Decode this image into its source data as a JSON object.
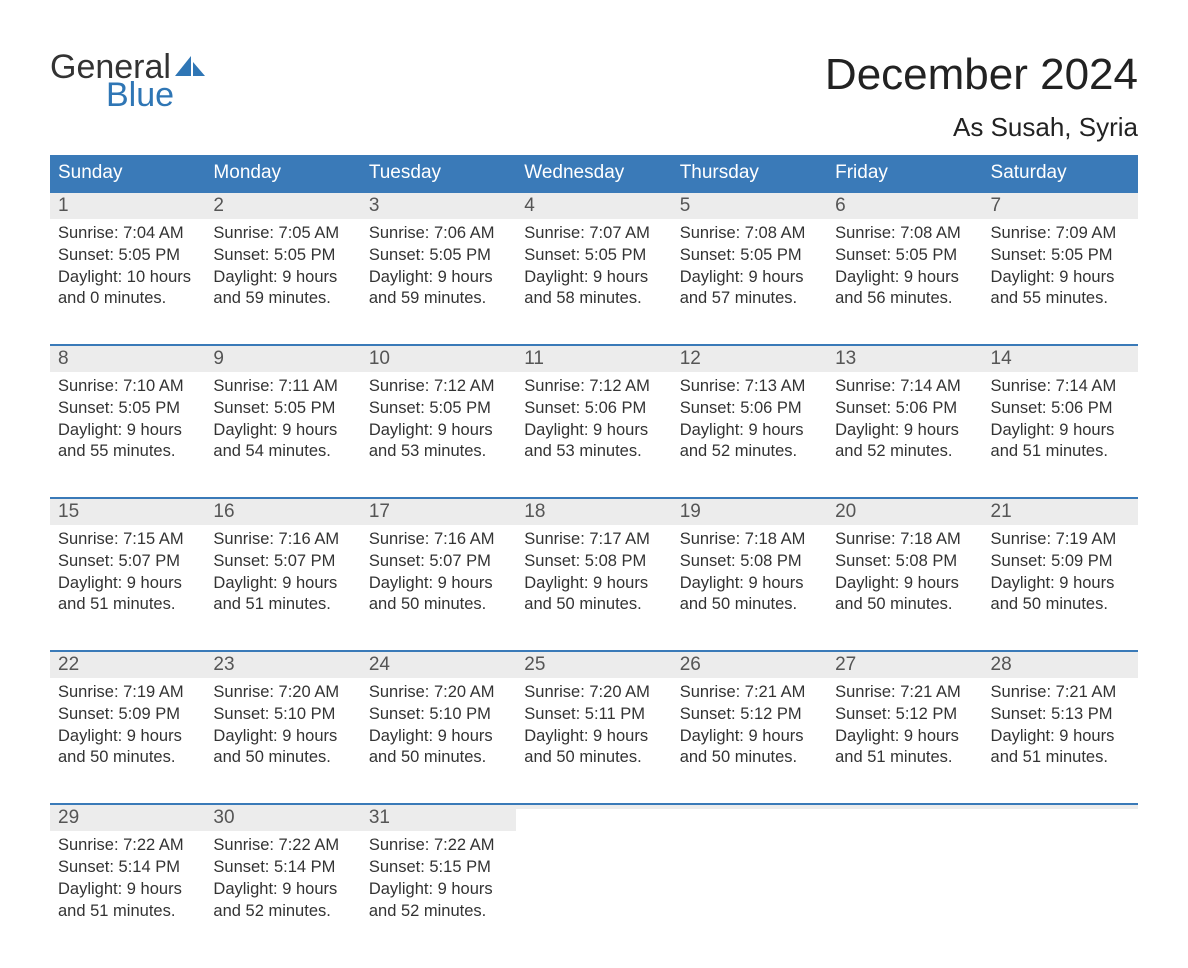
{
  "colors": {
    "header_bg": "#3a7ab8",
    "header_text": "#ffffff",
    "daynum_bg": "#ececec",
    "daynum_text": "#555555",
    "body_text": "#333333",
    "accent_border": "#3a7ab8",
    "logo_blue": "#2f76b5",
    "logo_dark": "#333333",
    "page_bg": "#ffffff"
  },
  "logo": {
    "part1": "General",
    "part2": "Blue"
  },
  "title": "December 2024",
  "location": "As Susah, Syria",
  "weekdays": [
    "Sunday",
    "Monday",
    "Tuesday",
    "Wednesday",
    "Thursday",
    "Friday",
    "Saturday"
  ],
  "weeks": [
    [
      {
        "n": "1",
        "sr": "Sunrise: 7:04 AM",
        "ss": "Sunset: 5:05 PM",
        "d1": "Daylight: 10 hours",
        "d2": "and 0 minutes."
      },
      {
        "n": "2",
        "sr": "Sunrise: 7:05 AM",
        "ss": "Sunset: 5:05 PM",
        "d1": "Daylight: 9 hours",
        "d2": "and 59 minutes."
      },
      {
        "n": "3",
        "sr": "Sunrise: 7:06 AM",
        "ss": "Sunset: 5:05 PM",
        "d1": "Daylight: 9 hours",
        "d2": "and 59 minutes."
      },
      {
        "n": "4",
        "sr": "Sunrise: 7:07 AM",
        "ss": "Sunset: 5:05 PM",
        "d1": "Daylight: 9 hours",
        "d2": "and 58 minutes."
      },
      {
        "n": "5",
        "sr": "Sunrise: 7:08 AM",
        "ss": "Sunset: 5:05 PM",
        "d1": "Daylight: 9 hours",
        "d2": "and 57 minutes."
      },
      {
        "n": "6",
        "sr": "Sunrise: 7:08 AM",
        "ss": "Sunset: 5:05 PM",
        "d1": "Daylight: 9 hours",
        "d2": "and 56 minutes."
      },
      {
        "n": "7",
        "sr": "Sunrise: 7:09 AM",
        "ss": "Sunset: 5:05 PM",
        "d1": "Daylight: 9 hours",
        "d2": "and 55 minutes."
      }
    ],
    [
      {
        "n": "8",
        "sr": "Sunrise: 7:10 AM",
        "ss": "Sunset: 5:05 PM",
        "d1": "Daylight: 9 hours",
        "d2": "and 55 minutes."
      },
      {
        "n": "9",
        "sr": "Sunrise: 7:11 AM",
        "ss": "Sunset: 5:05 PM",
        "d1": "Daylight: 9 hours",
        "d2": "and 54 minutes."
      },
      {
        "n": "10",
        "sr": "Sunrise: 7:12 AM",
        "ss": "Sunset: 5:05 PM",
        "d1": "Daylight: 9 hours",
        "d2": "and 53 minutes."
      },
      {
        "n": "11",
        "sr": "Sunrise: 7:12 AM",
        "ss": "Sunset: 5:06 PM",
        "d1": "Daylight: 9 hours",
        "d2": "and 53 minutes."
      },
      {
        "n": "12",
        "sr": "Sunrise: 7:13 AM",
        "ss": "Sunset: 5:06 PM",
        "d1": "Daylight: 9 hours",
        "d2": "and 52 minutes."
      },
      {
        "n": "13",
        "sr": "Sunrise: 7:14 AM",
        "ss": "Sunset: 5:06 PM",
        "d1": "Daylight: 9 hours",
        "d2": "and 52 minutes."
      },
      {
        "n": "14",
        "sr": "Sunrise: 7:14 AM",
        "ss": "Sunset: 5:06 PM",
        "d1": "Daylight: 9 hours",
        "d2": "and 51 minutes."
      }
    ],
    [
      {
        "n": "15",
        "sr": "Sunrise: 7:15 AM",
        "ss": "Sunset: 5:07 PM",
        "d1": "Daylight: 9 hours",
        "d2": "and 51 minutes."
      },
      {
        "n": "16",
        "sr": "Sunrise: 7:16 AM",
        "ss": "Sunset: 5:07 PM",
        "d1": "Daylight: 9 hours",
        "d2": "and 51 minutes."
      },
      {
        "n": "17",
        "sr": "Sunrise: 7:16 AM",
        "ss": "Sunset: 5:07 PM",
        "d1": "Daylight: 9 hours",
        "d2": "and 50 minutes."
      },
      {
        "n": "18",
        "sr": "Sunrise: 7:17 AM",
        "ss": "Sunset: 5:08 PM",
        "d1": "Daylight: 9 hours",
        "d2": "and 50 minutes."
      },
      {
        "n": "19",
        "sr": "Sunrise: 7:18 AM",
        "ss": "Sunset: 5:08 PM",
        "d1": "Daylight: 9 hours",
        "d2": "and 50 minutes."
      },
      {
        "n": "20",
        "sr": "Sunrise: 7:18 AM",
        "ss": "Sunset: 5:08 PM",
        "d1": "Daylight: 9 hours",
        "d2": "and 50 minutes."
      },
      {
        "n": "21",
        "sr": "Sunrise: 7:19 AM",
        "ss": "Sunset: 5:09 PM",
        "d1": "Daylight: 9 hours",
        "d2": "and 50 minutes."
      }
    ],
    [
      {
        "n": "22",
        "sr": "Sunrise: 7:19 AM",
        "ss": "Sunset: 5:09 PM",
        "d1": "Daylight: 9 hours",
        "d2": "and 50 minutes."
      },
      {
        "n": "23",
        "sr": "Sunrise: 7:20 AM",
        "ss": "Sunset: 5:10 PM",
        "d1": "Daylight: 9 hours",
        "d2": "and 50 minutes."
      },
      {
        "n": "24",
        "sr": "Sunrise: 7:20 AM",
        "ss": "Sunset: 5:10 PM",
        "d1": "Daylight: 9 hours",
        "d2": "and 50 minutes."
      },
      {
        "n": "25",
        "sr": "Sunrise: 7:20 AM",
        "ss": "Sunset: 5:11 PM",
        "d1": "Daylight: 9 hours",
        "d2": "and 50 minutes."
      },
      {
        "n": "26",
        "sr": "Sunrise: 7:21 AM",
        "ss": "Sunset: 5:12 PM",
        "d1": "Daylight: 9 hours",
        "d2": "and 50 minutes."
      },
      {
        "n": "27",
        "sr": "Sunrise: 7:21 AM",
        "ss": "Sunset: 5:12 PM",
        "d1": "Daylight: 9 hours",
        "d2": "and 51 minutes."
      },
      {
        "n": "28",
        "sr": "Sunrise: 7:21 AM",
        "ss": "Sunset: 5:13 PM",
        "d1": "Daylight: 9 hours",
        "d2": "and 51 minutes."
      }
    ],
    [
      {
        "n": "29",
        "sr": "Sunrise: 7:22 AM",
        "ss": "Sunset: 5:14 PM",
        "d1": "Daylight: 9 hours",
        "d2": "and 51 minutes."
      },
      {
        "n": "30",
        "sr": "Sunrise: 7:22 AM",
        "ss": "Sunset: 5:14 PM",
        "d1": "Daylight: 9 hours",
        "d2": "and 52 minutes."
      },
      {
        "n": "31",
        "sr": "Sunrise: 7:22 AM",
        "ss": "Sunset: 5:15 PM",
        "d1": "Daylight: 9 hours",
        "d2": "and 52 minutes."
      },
      {
        "empty": true
      },
      {
        "empty": true
      },
      {
        "empty": true
      },
      {
        "empty": true
      }
    ]
  ]
}
